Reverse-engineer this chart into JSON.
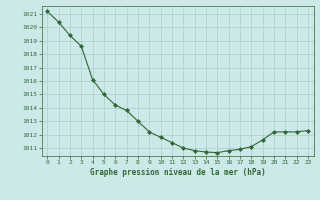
{
  "x": [
    0,
    1,
    2,
    3,
    4,
    5,
    6,
    7,
    8,
    9,
    10,
    11,
    12,
    13,
    14,
    15,
    16,
    17,
    18,
    19,
    20,
    21,
    22,
    23
  ],
  "y": [
    1021.2,
    1020.4,
    1019.4,
    1018.6,
    1016.1,
    1015.0,
    1014.2,
    1013.8,
    1013.0,
    1012.2,
    1011.8,
    1011.4,
    1011.0,
    1010.8,
    1010.7,
    1010.65,
    1010.8,
    1010.9,
    1011.1,
    1011.6,
    1012.2,
    1012.2,
    1012.2,
    1012.3
  ],
  "line_color": "#2d6a2d",
  "marker_color": "#2d6a2d",
  "bg_color": "#cce8e8",
  "grid_color": "#aacece",
  "xlabel": "Graphe pression niveau de la mer (hPa)",
  "xlabel_color": "#2d6a2d",
  "tick_color": "#2d6a2d",
  "ylim_min": 1010.4,
  "ylim_max": 1021.6,
  "xlim_min": -0.5,
  "xlim_max": 23.5,
  "yticks": [
    1011,
    1012,
    1013,
    1014,
    1015,
    1016,
    1017,
    1018,
    1019,
    1020,
    1021
  ],
  "xticks": [
    0,
    1,
    2,
    3,
    4,
    5,
    6,
    7,
    8,
    9,
    10,
    11,
    12,
    13,
    14,
    15,
    16,
    17,
    18,
    19,
    20,
    21,
    22,
    23
  ]
}
